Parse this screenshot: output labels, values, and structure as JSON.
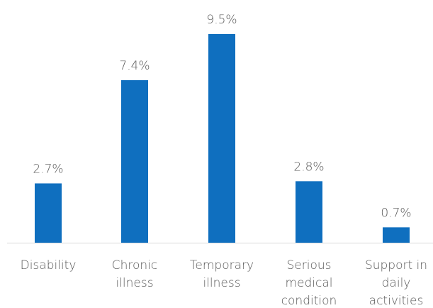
{
  "chart_data": {
    "type": "bar",
    "categories": [
      [
        "Disability"
      ],
      [
        "Chronic",
        "illness"
      ],
      [
        "Temporary",
        "illness"
      ],
      [
        "Serious",
        "medical",
        "condition"
      ],
      [
        "Support in",
        "daily",
        "activities"
      ]
    ],
    "values": [
      2.7,
      7.4,
      9.5,
      2.8,
      0.7
    ],
    "value_labels": [
      "2.7%",
      "7.4%",
      "9.5%",
      "2.8%",
      "0.7%"
    ],
    "unit": "%",
    "ylim": [
      0,
      10
    ],
    "grid": false,
    "legend": "none",
    "bar_color": "#0f6fbf",
    "axis_color": "#d9d9d9",
    "label_color": "#595959"
  }
}
